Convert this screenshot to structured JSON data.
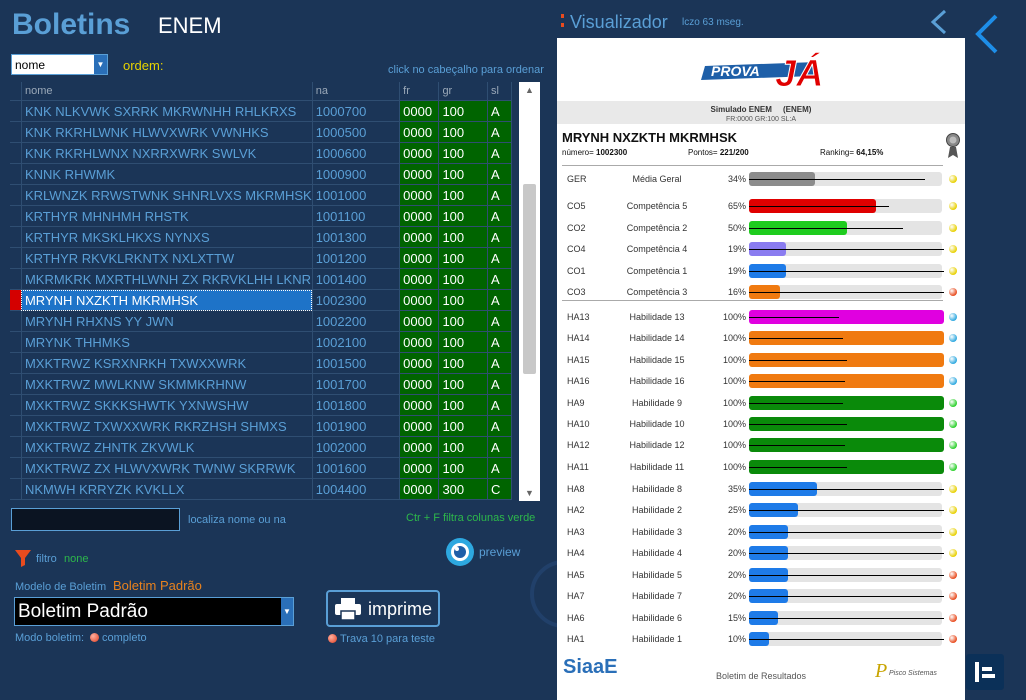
{
  "app": {
    "title": "Boletins",
    "subtitle": "ENEM"
  },
  "sort": {
    "selected": "nome",
    "ordem_label": "ordem:",
    "hint": "click no cabeçalho para ordenar"
  },
  "grid": {
    "columns": [
      "nome",
      "na",
      "fr",
      "gr",
      "sl"
    ],
    "rows": [
      {
        "nome": "KNK NLKVWK SXRRK MKRWNHH RHLKRXS",
        "na": "1000700",
        "fr": "0000",
        "gr": "100",
        "sl": "A"
      },
      {
        "nome": "KNK RKRHLWNK HLWVXWRK VWNHKS",
        "na": "1000500",
        "fr": "0000",
        "gr": "100",
        "sl": "A"
      },
      {
        "nome": "KNK RKRHLWNX NXRRXWRK SWLVK",
        "na": "1000600",
        "fr": "0000",
        "gr": "100",
        "sl": "A"
      },
      {
        "nome": "KNNK RHWMK",
        "na": "1000900",
        "fr": "0000",
        "gr": "100",
        "sl": "A"
      },
      {
        "nome": "KRLWNZK RRWSTWNK SHNRLVXS MKRMHSK",
        "na": "1001000",
        "fr": "0000",
        "gr": "100",
        "sl": "A"
      },
      {
        "nome": "KRTHYR MHNHMH RHSTK",
        "na": "1001100",
        "fr": "0000",
        "gr": "100",
        "sl": "A"
      },
      {
        "nome": "KRTHYR MKSKLHKXS NYNXS",
        "na": "1001300",
        "fr": "0000",
        "gr": "100",
        "sl": "A"
      },
      {
        "nome": "KRTHYR RKVKLRKNTX NXLXTTW",
        "na": "1001200",
        "fr": "0000",
        "gr": "100",
        "sl": "A"
      },
      {
        "nome": "MKRMKRK MXRTHLWNH ZX RKRVKLHH LKNR",
        "na": "1001400",
        "fr": "0000",
        "gr": "100",
        "sl": "A"
      },
      {
        "nome": "MRYNH NXZKTH MKRMHSK",
        "na": "1002300",
        "fr": "0000",
        "gr": "100",
        "sl": "A",
        "selected": true
      },
      {
        "nome": "MRYNH RHXNS YY JWN",
        "na": "1002200",
        "fr": "0000",
        "gr": "100",
        "sl": "A"
      },
      {
        "nome": "MRYNK THHMKS",
        "na": "1002100",
        "fr": "0000",
        "gr": "100",
        "sl": "A"
      },
      {
        "nome": "MXKTRWZ KSRXNRKH TXWXXWRK",
        "na": "1001500",
        "fr": "0000",
        "gr": "100",
        "sl": "A"
      },
      {
        "nome": "MXKTRWZ MWLKNW SKMMKRHNW",
        "na": "1001700",
        "fr": "0000",
        "gr": "100",
        "sl": "A"
      },
      {
        "nome": "MXKTRWZ SKKKSHWTK YXNWSHW",
        "na": "1001800",
        "fr": "0000",
        "gr": "100",
        "sl": "A"
      },
      {
        "nome": "MXKTRWZ TXWXXWRK RKRZHSH SHMXS",
        "na": "1001900",
        "fr": "0000",
        "gr": "100",
        "sl": "A"
      },
      {
        "nome": "MXKTRWZ ZHNTK ZKVWLK",
        "na": "1002000",
        "fr": "0000",
        "gr": "100",
        "sl": "A"
      },
      {
        "nome": "MXKTRWZ ZX HLWVXWRK TWNW SKRRWK",
        "na": "1001600",
        "fr": "0000",
        "gr": "100",
        "sl": "A"
      },
      {
        "nome": "NKMWH KRRYZK KVKLLX",
        "na": "1004400",
        "fr": "0000",
        "gr": "300",
        "sl": "C"
      }
    ]
  },
  "search": {
    "value": "",
    "label": "localiza nome ou na",
    "ctrl_hint": "Ctr + F filtra colunas verde"
  },
  "filter": {
    "label": "filtro",
    "value": "none"
  },
  "preview": {
    "label": "preview"
  },
  "modelo": {
    "label": "Modelo de Boletim",
    "value": "Boletim Padrão",
    "selected": "Boletim Padrão"
  },
  "print": {
    "label": "imprime"
  },
  "modo": {
    "label": "Modo boletim:",
    "value": "completo"
  },
  "trava": {
    "label": "Trava 10 para teste"
  },
  "viewer": {
    "title": "Visualizador",
    "time": "lczo 63 mseg.",
    "logo_text": "PROVA JÁ",
    "simulado": "Simulado ENEM     (ENEM)",
    "sim_info": "FR:0000  GR:100 SL:A",
    "student": "MRYNH NXZKTH MKRMHSK",
    "numero_label": "número=",
    "numero": "1002300",
    "pontos_label": "Pontos=",
    "pontos": "221/200",
    "ranking_label": "Ranking=",
    "ranking": "64,15%",
    "footer_logo": "SiaaE",
    "footer_text": "Boletim de Resultados",
    "footer_brand": "Pisco Sistemas",
    "metrics": [
      {
        "code": "GER",
        "name": "Média Geral",
        "pct": "34%",
        "value": 34,
        "ref": 90,
        "color": "#8c8c8c",
        "dot": "#e8d000"
      },
      {
        "code": "CO5",
        "name": "Competência 5",
        "pct": "65%",
        "value": 65,
        "ref": 72,
        "color": "#e00000",
        "dot": "#e8d000"
      },
      {
        "code": "CO2",
        "name": "Competência 2",
        "pct": "50%",
        "value": 50,
        "ref": 79,
        "color": "#1ecc1e",
        "dot": "#e8d000"
      },
      {
        "code": "CO4",
        "name": "Competência 4",
        "pct": "19%",
        "value": 19,
        "ref": 100,
        "color": "#8a7cf0",
        "dot": "#e8d000"
      },
      {
        "code": "CO1",
        "name": "Competência 1",
        "pct": "19%",
        "value": 19,
        "ref": 100,
        "color": "#1e7be8",
        "dot": "#e8d000"
      },
      {
        "code": "CO3",
        "name": "Competência 3",
        "pct": "16%",
        "value": 16,
        "ref": 100,
        "color": "#f07a10",
        "dot": "#e84b1e"
      },
      {
        "code": "HA13",
        "name": "Habilidade 13",
        "pct": "100%",
        "value": 100,
        "ref": 46,
        "color": "#e000e0",
        "dot": "#2da8e0"
      },
      {
        "code": "HA14",
        "name": "Habilidade 14",
        "pct": "100%",
        "value": 100,
        "ref": 48,
        "color": "#f07a10",
        "dot": "#2da8e0"
      },
      {
        "code": "HA15",
        "name": "Habilidade 15",
        "pct": "100%",
        "value": 100,
        "ref": 50,
        "color": "#f07a10",
        "dot": "#2da8e0"
      },
      {
        "code": "HA16",
        "name": "Habilidade 16",
        "pct": "100%",
        "value": 100,
        "ref": 49,
        "color": "#f07a10",
        "dot": "#2da8e0"
      },
      {
        "code": "HA9",
        "name": "Habilidade 9",
        "pct": "100%",
        "value": 100,
        "ref": 48,
        "color": "#0a8a0a",
        "dot": "#2ad02a"
      },
      {
        "code": "HA10",
        "name": "Habilidade 10",
        "pct": "100%",
        "value": 100,
        "ref": 50,
        "color": "#0a8a0a",
        "dot": "#2ad02a"
      },
      {
        "code": "HA12",
        "name": "Habilidade 12",
        "pct": "100%",
        "value": 100,
        "ref": 49,
        "color": "#0a8a0a",
        "dot": "#2ad02a"
      },
      {
        "code": "HA11",
        "name": "Habilidade 11",
        "pct": "100%",
        "value": 100,
        "ref": 50,
        "color": "#0a8a0a",
        "dot": "#2ad02a"
      },
      {
        "code": "HA8",
        "name": "Habilidade 8",
        "pct": "35%",
        "value": 35,
        "ref": 100,
        "color": "#1e7be8",
        "dot": "#e8d000"
      },
      {
        "code": "HA2",
        "name": "Habilidade 2",
        "pct": "25%",
        "value": 25,
        "ref": 100,
        "color": "#1e7be8",
        "dot": "#e8d000"
      },
      {
        "code": "HA3",
        "name": "Habilidade 3",
        "pct": "20%",
        "value": 20,
        "ref": 100,
        "color": "#1e7be8",
        "dot": "#e8d000"
      },
      {
        "code": "HA4",
        "name": "Habilidade 4",
        "pct": "20%",
        "value": 20,
        "ref": 100,
        "color": "#1e7be8",
        "dot": "#e8d000"
      },
      {
        "code": "HA5",
        "name": "Habilidade 5",
        "pct": "20%",
        "value": 20,
        "ref": 100,
        "color": "#1e7be8",
        "dot": "#e84b1e"
      },
      {
        "code": "HA7",
        "name": "Habilidade 7",
        "pct": "20%",
        "value": 20,
        "ref": 100,
        "color": "#1e7be8",
        "dot": "#e84b1e"
      },
      {
        "code": "HA6",
        "name": "Habilidade 6",
        "pct": "15%",
        "value": 15,
        "ref": 100,
        "color": "#1e7be8",
        "dot": "#e84b1e"
      },
      {
        "code": "HA1",
        "name": "Habilidade 1",
        "pct": "10%",
        "value": 10,
        "ref": 100,
        "color": "#1e7be8",
        "dot": "#e84b1e"
      }
    ]
  }
}
